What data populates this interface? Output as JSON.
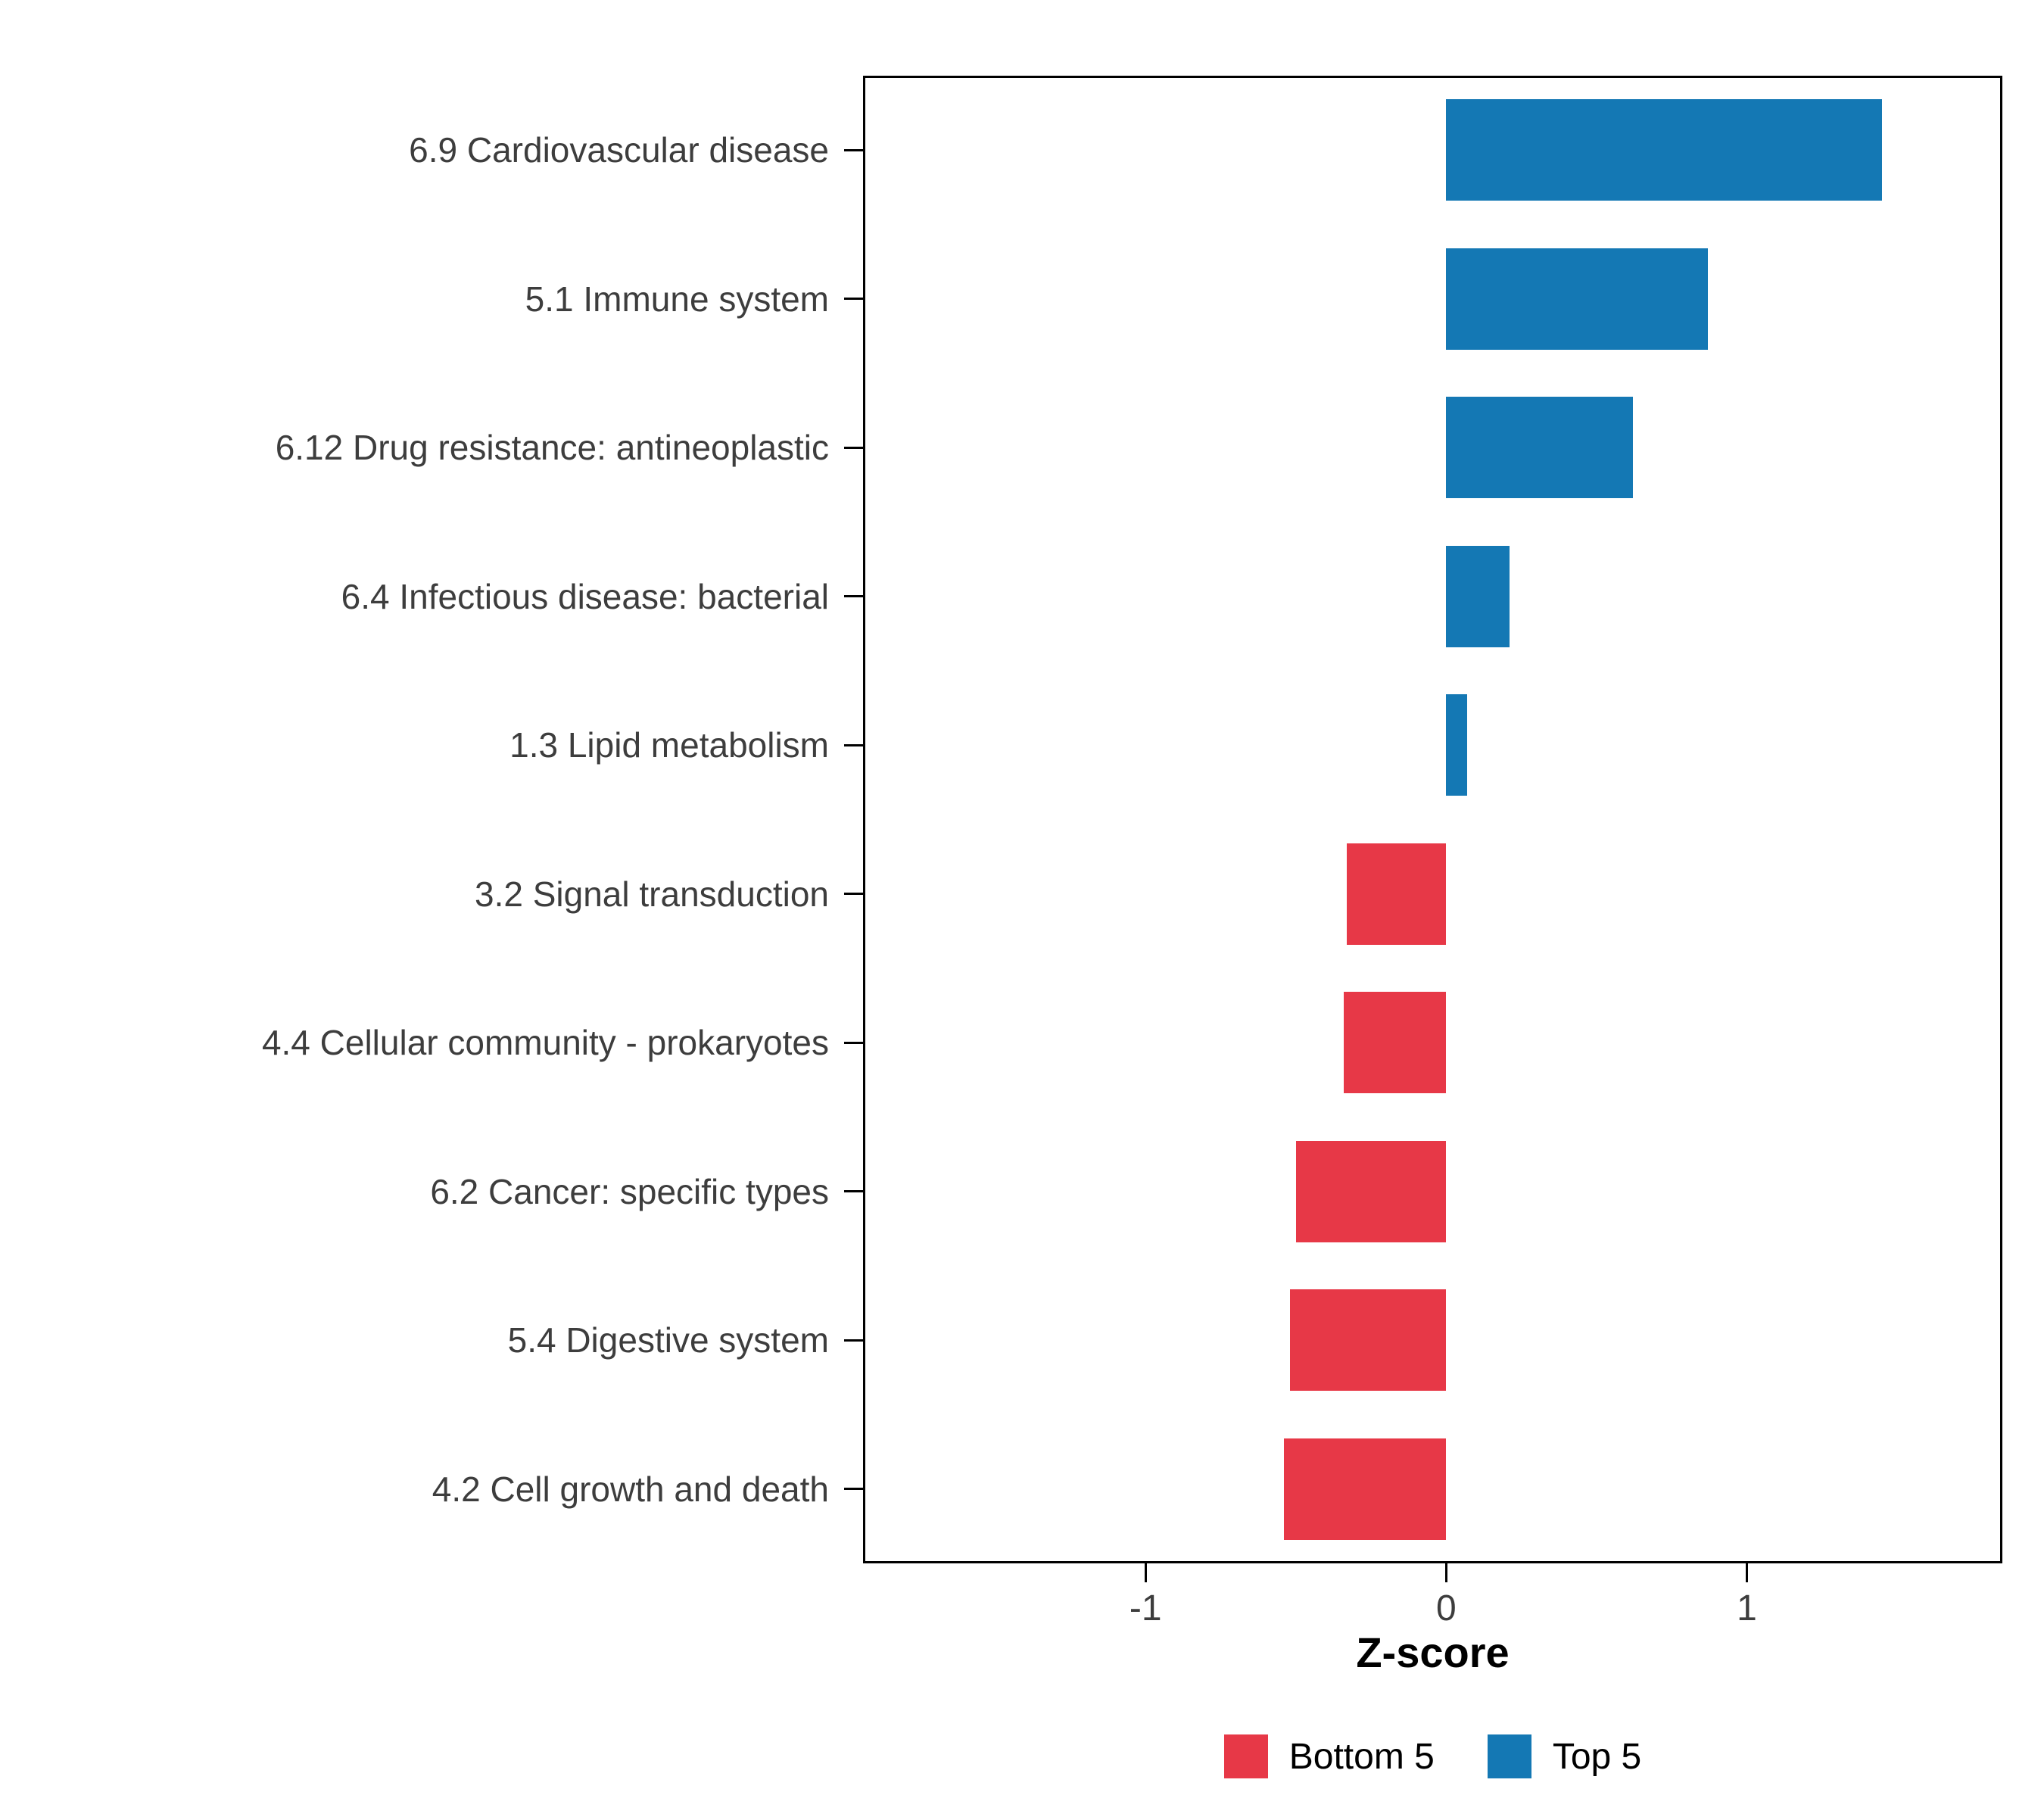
{
  "chart_data": {
    "type": "bar",
    "orientation": "horizontal",
    "title": "",
    "xlabel": "Z-score",
    "grid": false,
    "legend_position": "bottom",
    "xticks": [
      -1,
      0,
      1
    ],
    "xlim": [
      -1.94,
      1.85
    ],
    "colors": {
      "Bottom 5": "#E73847",
      "Top 5": "#1478B4"
    },
    "legend": [
      {
        "label": "Bottom 5",
        "color": "#E73847"
      },
      {
        "label": "Top 5",
        "color": "#1478B4"
      }
    ],
    "bars": [
      {
        "label": "6.9 Cardiovascular disease",
        "value": 1.45,
        "group": "Top 5"
      },
      {
        "label": "5.1 Immune system",
        "value": 0.87,
        "group": "Top 5"
      },
      {
        "label": "6.12 Drug resistance: antineoplastic",
        "value": 0.62,
        "group": "Top 5"
      },
      {
        "label": "6.4 Infectious disease: bacterial",
        "value": 0.21,
        "group": "Top 5"
      },
      {
        "label": "1.3 Lipid metabolism",
        "value": 0.07,
        "group": "Top 5"
      },
      {
        "label": "3.2 Signal transduction",
        "value": -0.33,
        "group": "Bottom 5"
      },
      {
        "label": "4.4 Cellular community - prokaryotes",
        "value": -0.34,
        "group": "Bottom 5"
      },
      {
        "label": "6.2 Cancer: specific types",
        "value": -0.5,
        "group": "Bottom 5"
      },
      {
        "label": "5.4 Digestive system",
        "value": -0.52,
        "group": "Bottom 5"
      },
      {
        "label": "4.2 Cell growth and death",
        "value": -0.54,
        "group": "Bottom 5"
      }
    ]
  }
}
